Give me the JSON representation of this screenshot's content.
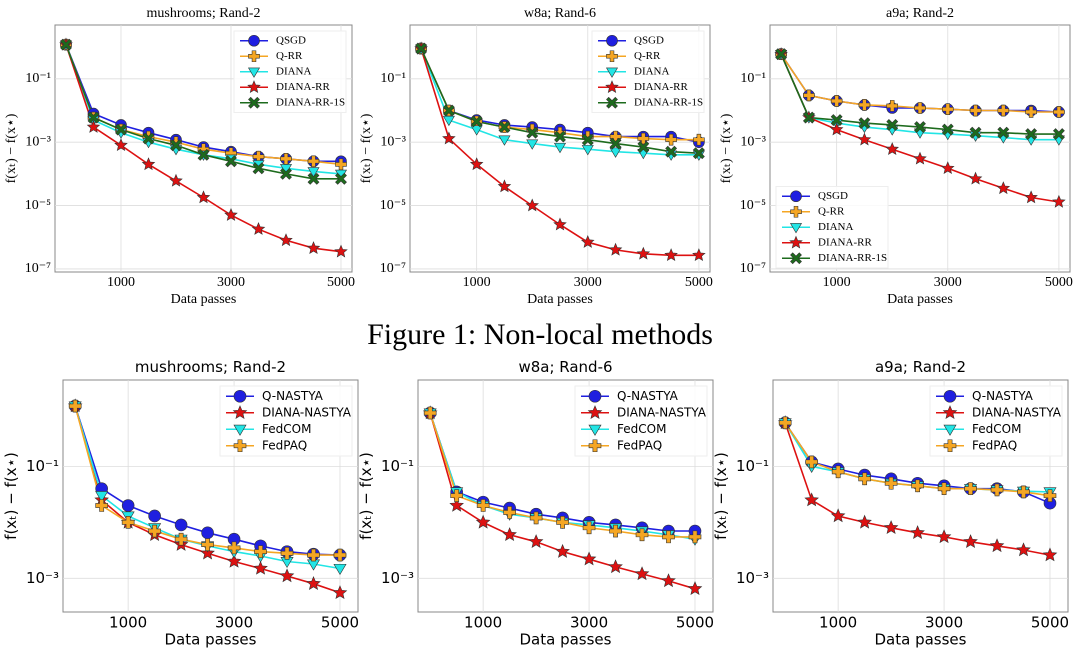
{
  "caption": "Figure 1: Non-local methods",
  "chart_data": [
    {
      "type": "line",
      "title": "mushrooms; Rand-2",
      "xlabel": "Data passes",
      "ylabel": "f(xₜ) − f(x⋆)",
      "yscale": "log",
      "grid": true,
      "legend": "upper right",
      "x": [
        0,
        500,
        1000,
        1500,
        2000,
        2500,
        3000,
        3500,
        4000,
        4500,
        5000
      ],
      "xlim": [
        -200,
        5200
      ],
      "xticks": [
        1000,
        3000,
        5000
      ],
      "ylim": [
        8e-08,
        5
      ],
      "yticks": [
        {
          "value": 0.1,
          "label": "10⁻¹"
        },
        {
          "value": 0.001,
          "label": "10⁻³"
        },
        {
          "value": 1e-05,
          "label": "10⁻⁵"
        },
        {
          "value": 1e-07,
          "label": "10⁻⁷"
        }
      ],
      "series": [
        {
          "name": "QSGD",
          "color": "#1f1fe0",
          "marker": "circle",
          "values": [
            1.2,
            0.008,
            0.0035,
            0.002,
            0.0012,
            0.0007,
            0.0005,
            0.00035,
            0.0003,
            0.00025,
            0.00025
          ]
        },
        {
          "name": "Q-RR",
          "color": "#f5a623",
          "marker": "plus",
          "values": [
            1.2,
            0.006,
            0.0025,
            0.0015,
            0.001,
            0.0006,
            0.00045,
            0.00035,
            0.0003,
            0.00025,
            0.0002
          ]
        },
        {
          "name": "DIANA",
          "color": "#22e5e5",
          "marker": "tri",
          "values": [
            1.2,
            0.005,
            0.002,
            0.001,
            0.0006,
            0.0004,
            0.0003,
            0.0002,
            0.00015,
            0.00012,
            0.0001
          ]
        },
        {
          "name": "DIANA-RR",
          "color": "#dd1111",
          "marker": "star",
          "values": [
            1.2,
            0.003,
            0.0008,
            0.0002,
            6e-05,
            1.8e-05,
            5e-06,
            1.8e-06,
            8e-07,
            4.5e-07,
            3.5e-07
          ]
        },
        {
          "name": "DIANA-RR-1S",
          "color": "#1d6b1d",
          "marker": "x",
          "values": [
            1.2,
            0.006,
            0.0025,
            0.0013,
            0.0008,
            0.0004,
            0.00025,
            0.00015,
            0.0001,
            7e-05,
            7e-05
          ]
        }
      ]
    },
    {
      "type": "line",
      "title": "w8a; Rand-6",
      "xlabel": "Data passes",
      "ylabel": "f(xₜ) − f(x⋆)",
      "yscale": "log",
      "grid": true,
      "legend": "upper right",
      "x": [
        0,
        500,
        1000,
        1500,
        2000,
        2500,
        3000,
        3500,
        4000,
        4500,
        5000
      ],
      "xlim": [
        -200,
        5200
      ],
      "xticks": [
        1000,
        3000,
        5000
      ],
      "ylim": [
        8e-08,
        5
      ],
      "yticks": [
        {
          "value": 0.1,
          "label": "10⁻¹"
        },
        {
          "value": 0.001,
          "label": "10⁻³"
        },
        {
          "value": 1e-05,
          "label": "10⁻⁵"
        },
        {
          "value": 1e-07,
          "label": "10⁻⁷"
        }
      ],
      "series": [
        {
          "name": "QSGD",
          "color": "#1f1fe0",
          "marker": "circle",
          "values": [
            0.9,
            0.01,
            0.005,
            0.0035,
            0.003,
            0.0025,
            0.002,
            0.0015,
            0.0015,
            0.0015,
            0.001
          ]
        },
        {
          "name": "Q-RR",
          "color": "#f5a623",
          "marker": "plus",
          "values": [
            0.9,
            0.01,
            0.0045,
            0.003,
            0.0025,
            0.002,
            0.0015,
            0.0015,
            0.0013,
            0.0012,
            0.0012
          ]
        },
        {
          "name": "DIANA",
          "color": "#22e5e5",
          "marker": "tri",
          "values": [
            0.9,
            0.005,
            0.0025,
            0.0012,
            0.0009,
            0.0007,
            0.0006,
            0.0005,
            0.00045,
            0.0004,
            0.0004
          ]
        },
        {
          "name": "DIANA-RR",
          "color": "#dd1111",
          "marker": "star",
          "values": [
            0.9,
            0.0013,
            0.0002,
            4e-05,
            1e-05,
            2.5e-06,
            7e-07,
            4e-07,
            3e-07,
            2.7e-07,
            2.7e-07
          ]
        },
        {
          "name": "DIANA-RR-1S",
          "color": "#1d6b1d",
          "marker": "x",
          "values": [
            0.9,
            0.01,
            0.0045,
            0.003,
            0.002,
            0.0015,
            0.0012,
            0.0009,
            0.0007,
            0.0005,
            0.00045
          ]
        }
      ]
    },
    {
      "type": "line",
      "title": "a9a; Rand-2",
      "xlabel": "Data passes",
      "ylabel": "f(xₜ) − f(x⋆)",
      "yscale": "log",
      "grid": true,
      "legend": "lower left",
      "x": [
        0,
        500,
        1000,
        1500,
        2000,
        2500,
        3000,
        3500,
        4000,
        4500,
        5000
      ],
      "xlim": [
        -200,
        5200
      ],
      "xticks": [
        1000,
        3000,
        5000
      ],
      "ylim": [
        8e-08,
        5
      ],
      "yticks": [
        {
          "value": 0.1,
          "label": "10⁻¹"
        },
        {
          "value": 0.001,
          "label": "10⁻³"
        },
        {
          "value": 1e-05,
          "label": "10⁻⁵"
        },
        {
          "value": 1e-07,
          "label": "10⁻⁷"
        }
      ],
      "series": [
        {
          "name": "QSGD",
          "color": "#1f1fe0",
          "marker": "circle",
          "values": [
            0.6,
            0.03,
            0.02,
            0.015,
            0.012,
            0.012,
            0.011,
            0.01,
            0.01,
            0.01,
            0.009
          ]
        },
        {
          "name": "Q-RR",
          "color": "#f5a623",
          "marker": "plus",
          "values": [
            0.6,
            0.03,
            0.02,
            0.015,
            0.014,
            0.012,
            0.011,
            0.01,
            0.01,
            0.009,
            0.009
          ]
        },
        {
          "name": "DIANA",
          "color": "#22e5e5",
          "marker": "tri",
          "values": [
            0.6,
            0.006,
            0.004,
            0.003,
            0.0025,
            0.002,
            0.0018,
            0.0016,
            0.0014,
            0.0012,
            0.0012
          ]
        },
        {
          "name": "DIANA-RR",
          "color": "#dd1111",
          "marker": "star",
          "values": [
            0.6,
            0.006,
            0.0025,
            0.0012,
            0.0006,
            0.0003,
            0.00015,
            7e-05,
            3.5e-05,
            1.8e-05,
            1.3e-05
          ]
        },
        {
          "name": "DIANA-RR-1S",
          "color": "#1d6b1d",
          "marker": "x",
          "values": [
            0.6,
            0.006,
            0.005,
            0.004,
            0.0035,
            0.003,
            0.0025,
            0.002,
            0.002,
            0.0018,
            0.0018
          ]
        }
      ]
    },
    {
      "type": "line",
      "title": "mushrooms; Rand-2",
      "xlabel": "Data passes",
      "ylabel": "f(xₜ) − f(x⋆)",
      "yscale": "log",
      "grid": true,
      "legend": "upper right",
      "x": [
        0,
        500,
        1000,
        1500,
        2000,
        2500,
        3000,
        3500,
        4000,
        4500,
        5000
      ],
      "xlim": [
        -230,
        5340
      ],
      "xticks": [
        1000,
        3000,
        5000
      ],
      "ylim": [
        0.00025,
        3.5
      ],
      "yticks": [
        {
          "value": 0.1,
          "label": "10⁻¹"
        },
        {
          "value": 0.001,
          "label": "10⁻³"
        }
      ],
      "series": [
        {
          "name": "Q-NASTYA",
          "color": "#1f1fe0",
          "marker": "circle",
          "values": [
            1.2,
            0.04,
            0.02,
            0.013,
            0.009,
            0.0065,
            0.005,
            0.0038,
            0.003,
            0.0027,
            0.0026
          ]
        },
        {
          "name": "DIANA-NASTYA",
          "color": "#dd1111",
          "marker": "star",
          "values": [
            1.2,
            0.025,
            0.01,
            0.006,
            0.004,
            0.0028,
            0.002,
            0.0015,
            0.0011,
            0.0008,
            0.00055
          ]
        },
        {
          "name": "FedCOM",
          "color": "#22e5e5",
          "marker": "tri",
          "values": [
            1.2,
            0.03,
            0.013,
            0.008,
            0.005,
            0.0038,
            0.003,
            0.0025,
            0.002,
            0.0018,
            0.0015
          ]
        },
        {
          "name": "FedPAQ",
          "color": "#f5a623",
          "marker": "plus",
          "values": [
            1.2,
            0.02,
            0.01,
            0.007,
            0.005,
            0.004,
            0.0035,
            0.003,
            0.0028,
            0.0026,
            0.0026
          ]
        }
      ]
    },
    {
      "type": "line",
      "title": "w8a; Rand-6",
      "xlabel": "Data passes",
      "ylabel": "f(xₜ) − f(x⋆)",
      "yscale": "log",
      "grid": true,
      "legend": "upper right",
      "x": [
        0,
        500,
        1000,
        1500,
        2000,
        2500,
        3000,
        3500,
        4000,
        4500,
        5000
      ],
      "xlim": [
        -230,
        5340
      ],
      "xticks": [
        1000,
        3000,
        5000
      ],
      "ylim": [
        0.00025,
        3.5
      ],
      "yticks": [
        {
          "value": 0.1,
          "label": "10⁻¹"
        },
        {
          "value": 0.001,
          "label": "10⁻³"
        }
      ],
      "series": [
        {
          "name": "Q-NASTYA",
          "color": "#1f1fe0",
          "marker": "circle",
          "values": [
            0.9,
            0.035,
            0.023,
            0.018,
            0.014,
            0.012,
            0.01,
            0.009,
            0.008,
            0.007,
            0.007
          ]
        },
        {
          "name": "DIANA-NASTYA",
          "color": "#dd1111",
          "marker": "star",
          "values": [
            0.9,
            0.02,
            0.01,
            0.006,
            0.0045,
            0.003,
            0.0022,
            0.0016,
            0.0012,
            0.0009,
            0.00065
          ]
        },
        {
          "name": "FedCOM",
          "color": "#22e5e5",
          "marker": "tri",
          "values": [
            0.9,
            0.035,
            0.02,
            0.014,
            0.012,
            0.01,
            0.009,
            0.008,
            0.007,
            0.006,
            0.005
          ]
        },
        {
          "name": "FedPAQ",
          "color": "#f5a623",
          "marker": "plus",
          "values": [
            0.9,
            0.03,
            0.02,
            0.015,
            0.012,
            0.01,
            0.008,
            0.007,
            0.006,
            0.0055,
            0.0055
          ]
        }
      ]
    },
    {
      "type": "line",
      "title": "a9a; Rand-2",
      "xlabel": "Data passes",
      "ylabel": "f(xₜ) − f(x⋆)",
      "yscale": "log",
      "grid": true,
      "legend": "upper right",
      "x": [
        0,
        500,
        1000,
        1500,
        2000,
        2500,
        3000,
        3500,
        4000,
        4500,
        5000
      ],
      "xlim": [
        -230,
        5340
      ],
      "xticks": [
        1000,
        3000,
        5000
      ],
      "ylim": [
        0.00025,
        3.5
      ],
      "yticks": [
        {
          "value": 0.1,
          "label": "10⁻¹"
        },
        {
          "value": 0.001,
          "label": "10⁻³"
        }
      ],
      "series": [
        {
          "name": "Q-NASTYA",
          "color": "#1f1fe0",
          "marker": "circle",
          "values": [
            0.6,
            0.12,
            0.09,
            0.07,
            0.06,
            0.05,
            0.045,
            0.04,
            0.04,
            0.035,
            0.022
          ]
        },
        {
          "name": "DIANA-NASTYA",
          "color": "#dd1111",
          "marker": "star",
          "values": [
            0.6,
            0.025,
            0.013,
            0.01,
            0.008,
            0.0065,
            0.0055,
            0.0045,
            0.0038,
            0.0032,
            0.0026
          ]
        },
        {
          "name": "FedCOM",
          "color": "#22e5e5",
          "marker": "tri",
          "values": [
            0.6,
            0.1,
            0.08,
            0.06,
            0.05,
            0.045,
            0.04,
            0.04,
            0.038,
            0.036,
            0.035
          ]
        },
        {
          "name": "FedPAQ",
          "color": "#f5a623",
          "marker": "plus",
          "values": [
            0.6,
            0.12,
            0.08,
            0.06,
            0.05,
            0.045,
            0.04,
            0.04,
            0.038,
            0.035,
            0.03
          ]
        }
      ]
    }
  ]
}
